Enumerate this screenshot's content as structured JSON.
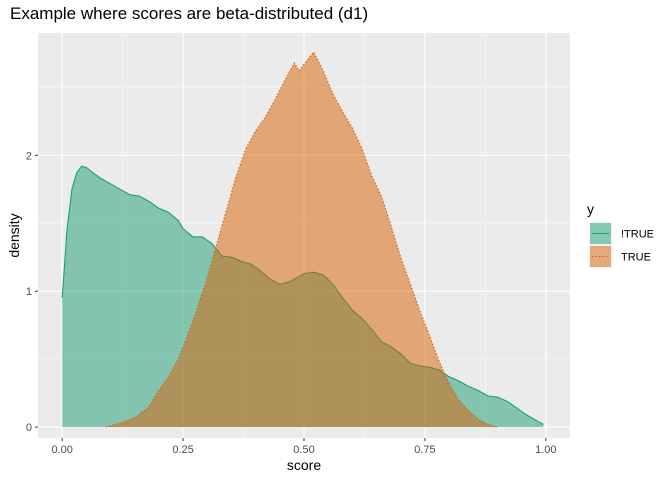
{
  "chart_data": {
    "type": "area",
    "title": "Example where scores are beta-distributed (d1)",
    "xlabel": "score",
    "ylabel": "density",
    "xlim": [
      -0.05,
      1.05
    ],
    "ylim": [
      -0.08,
      2.9
    ],
    "x_ticks": [
      0.0,
      0.25,
      0.5,
      0.75,
      1.0
    ],
    "x_tick_labels": [
      "0.00",
      "0.25",
      "0.50",
      "0.75",
      "1.00"
    ],
    "y_ticks": [
      0,
      1,
      2
    ],
    "y_tick_labels": [
      "0",
      "1",
      "2"
    ],
    "grid": true,
    "legend": {
      "title": "y",
      "position": "right"
    },
    "series": [
      {
        "name": "!TRUE",
        "color": "#1b9e77",
        "fill_opacity": 0.5,
        "line_style": "solid",
        "points": [
          [
            0.0,
            0.95
          ],
          [
            0.01,
            1.45
          ],
          [
            0.02,
            1.75
          ],
          [
            0.03,
            1.87
          ],
          [
            0.04,
            1.92
          ],
          [
            0.05,
            1.91
          ],
          [
            0.06,
            1.88
          ],
          [
            0.08,
            1.83
          ],
          [
            0.1,
            1.79
          ],
          [
            0.12,
            1.75
          ],
          [
            0.14,
            1.71
          ],
          [
            0.16,
            1.7
          ],
          [
            0.18,
            1.66
          ],
          [
            0.2,
            1.61
          ],
          [
            0.22,
            1.58
          ],
          [
            0.24,
            1.52
          ],
          [
            0.25,
            1.46
          ],
          [
            0.27,
            1.4
          ],
          [
            0.29,
            1.4
          ],
          [
            0.31,
            1.35
          ],
          [
            0.33,
            1.26
          ],
          [
            0.35,
            1.25
          ],
          [
            0.37,
            1.22
          ],
          [
            0.39,
            1.2
          ],
          [
            0.41,
            1.15
          ],
          [
            0.43,
            1.09
          ],
          [
            0.45,
            1.05
          ],
          [
            0.47,
            1.07
          ],
          [
            0.49,
            1.11
          ],
          [
            0.5,
            1.13
          ],
          [
            0.52,
            1.14
          ],
          [
            0.54,
            1.12
          ],
          [
            0.56,
            1.05
          ],
          [
            0.58,
            0.95
          ],
          [
            0.6,
            0.86
          ],
          [
            0.62,
            0.8
          ],
          [
            0.64,
            0.72
          ],
          [
            0.66,
            0.63
          ],
          [
            0.68,
            0.59
          ],
          [
            0.7,
            0.54
          ],
          [
            0.72,
            0.47
          ],
          [
            0.74,
            0.45
          ],
          [
            0.76,
            0.44
          ],
          [
            0.78,
            0.42
          ],
          [
            0.8,
            0.37
          ],
          [
            0.82,
            0.34
          ],
          [
            0.84,
            0.3
          ],
          [
            0.86,
            0.27
          ],
          [
            0.88,
            0.23
          ],
          [
            0.9,
            0.22
          ],
          [
            0.92,
            0.19
          ],
          [
            0.94,
            0.14
          ],
          [
            0.96,
            0.09
          ],
          [
            0.98,
            0.05
          ],
          [
            0.995,
            0.02
          ]
        ]
      },
      {
        "name": "TRUE",
        "color": "#d95f02",
        "fill_opacity": 0.5,
        "line_style": "dotted",
        "points": [
          [
            0.09,
            0.0
          ],
          [
            0.12,
            0.03
          ],
          [
            0.15,
            0.07
          ],
          [
            0.18,
            0.15
          ],
          [
            0.2,
            0.27
          ],
          [
            0.22,
            0.37
          ],
          [
            0.24,
            0.5
          ],
          [
            0.26,
            0.68
          ],
          [
            0.28,
            0.88
          ],
          [
            0.3,
            1.1
          ],
          [
            0.32,
            1.35
          ],
          [
            0.34,
            1.6
          ],
          [
            0.36,
            1.85
          ],
          [
            0.38,
            2.05
          ],
          [
            0.4,
            2.18
          ],
          [
            0.42,
            2.28
          ],
          [
            0.44,
            2.41
          ],
          [
            0.46,
            2.55
          ],
          [
            0.48,
            2.68
          ],
          [
            0.49,
            2.62
          ],
          [
            0.5,
            2.67
          ],
          [
            0.52,
            2.76
          ],
          [
            0.54,
            2.62
          ],
          [
            0.56,
            2.45
          ],
          [
            0.58,
            2.32
          ],
          [
            0.6,
            2.2
          ],
          [
            0.62,
            2.05
          ],
          [
            0.64,
            1.85
          ],
          [
            0.66,
            1.7
          ],
          [
            0.68,
            1.48
          ],
          [
            0.7,
            1.25
          ],
          [
            0.72,
            1.05
          ],
          [
            0.74,
            0.85
          ],
          [
            0.76,
            0.67
          ],
          [
            0.78,
            0.48
          ],
          [
            0.8,
            0.32
          ],
          [
            0.82,
            0.2
          ],
          [
            0.84,
            0.12
          ],
          [
            0.86,
            0.06
          ],
          [
            0.88,
            0.02
          ],
          [
            0.9,
            0.0
          ]
        ]
      }
    ]
  }
}
